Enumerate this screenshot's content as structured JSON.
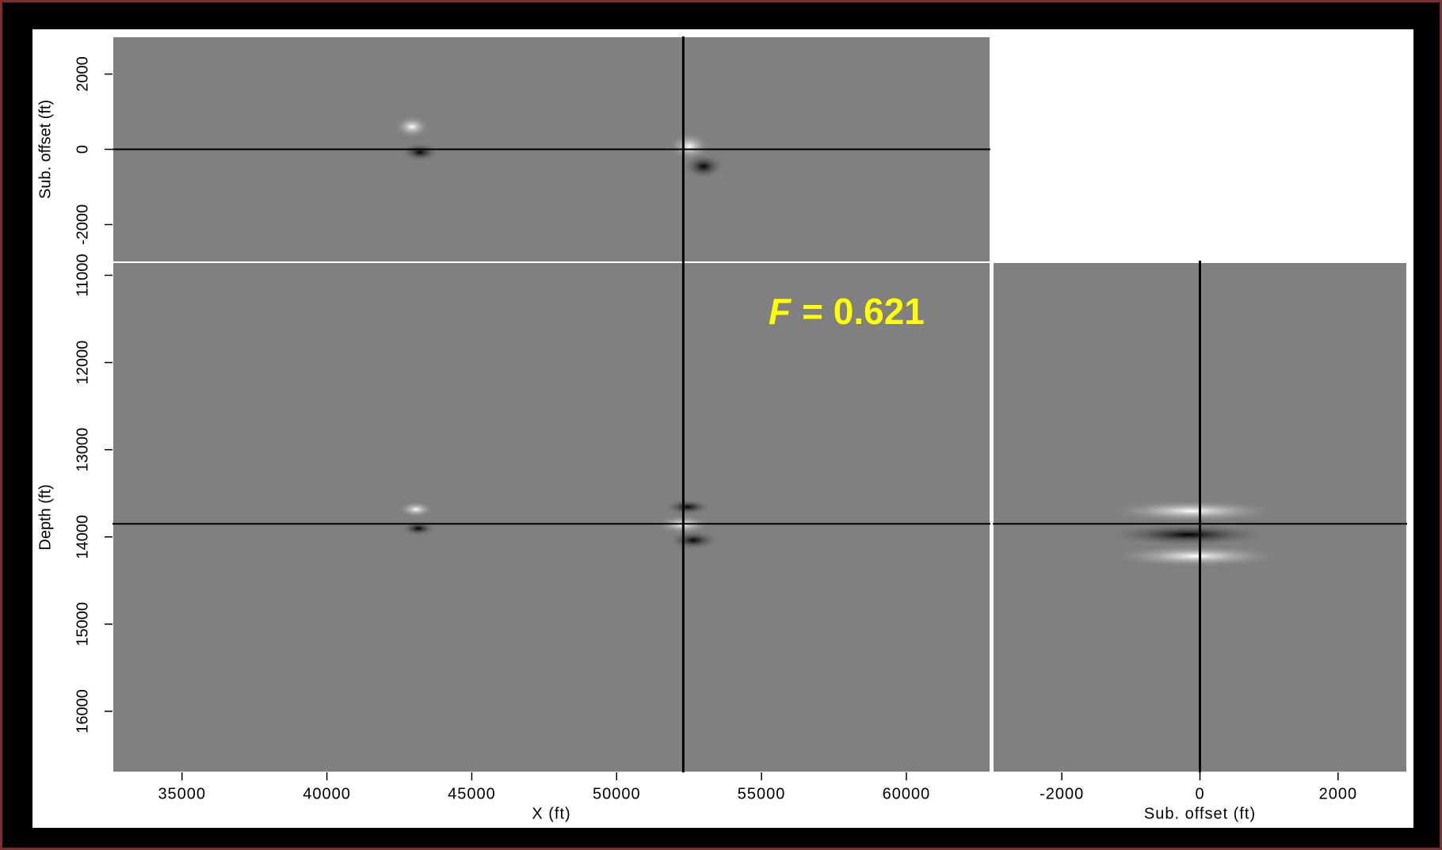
{
  "annotation": {
    "symbol": "F",
    "text": "= 0.621"
  },
  "chart_data": [
    {
      "type": "image",
      "ylabel": "Sub. offset (ft)",
      "xlim": [
        32600,
        62900
      ],
      "ylim": [
        -3000,
        3000
      ],
      "yticks": [
        -2000,
        0,
        2000
      ],
      "crosshair_x": 52300,
      "crosshair_y": 0
    },
    {
      "type": "image",
      "xlabel": "X (ft)",
      "ylabel": "Depth (ft)",
      "xlim": [
        32600,
        62900
      ],
      "ylim": [
        16700,
        10850
      ],
      "xticks": [
        35000,
        40000,
        45000,
        50000,
        55000,
        60000
      ],
      "yticks": [
        11000,
        12000,
        13000,
        14000,
        15000,
        16000
      ],
      "crosshair_x": 52300,
      "crosshair_y": 13850
    },
    {
      "type": "image",
      "xlabel": "Sub. offset (ft)",
      "xlim": [
        -3000,
        3000
      ],
      "ylim": [
        16700,
        10850
      ],
      "xticks": [
        -2000,
        0,
        2000
      ],
      "crosshair_x": 0,
      "crosshair_y": 13850
    }
  ]
}
